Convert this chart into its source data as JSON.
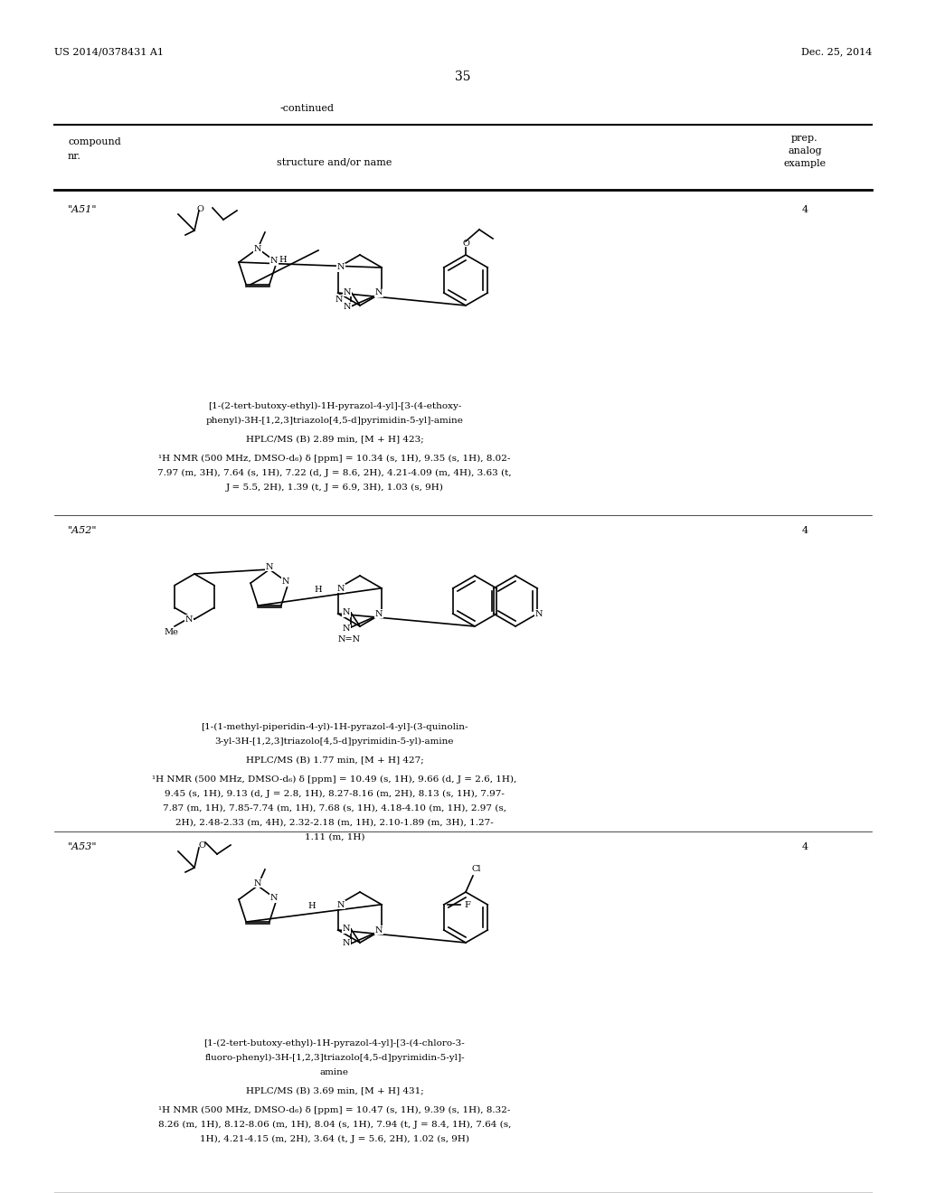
{
  "bg_color": "#ffffff",
  "page_header_left": "US 2014/0378431 A1",
  "page_header_right": "Dec. 25, 2014",
  "page_number": "35",
  "continued_label": "-continued",
  "table_header": {
    "col1_line1": "compound",
    "col1_line2": "nr.",
    "col2": "structure and/or name",
    "col3_line1": "prep.",
    "col3_line2": "analog",
    "col3_line3": "example"
  },
  "compounds": [
    {
      "id": "\"A51\"",
      "example": "4",
      "name_lines": [
        "[1-(2-tert-butoxy-ethyl)-1H-pyrazol-4-yl]-[3-(4-ethoxy-",
        "phenyl)-3H-[1,2,3]triazolo[4,5-d]pyrimidin-5-yl]-amine"
      ],
      "hplc": "HPLC/MS (B) 2.89 min, [M + H] 423;",
      "nmr_lines": [
        "¹H NMR (500 MHz, DMSO-d₆) δ [ppm] = 10.34 (s, 1H), 9.35 (s, 1H), 8.02-",
        "7.97 (m, 3H), 7.64 (s, 1H), 7.22 (d, J = 8.6, 2H), 4.21-4.09 (m, 4H), 3.63 (t,",
        "J = 5.5, 2H), 1.39 (t, J = 6.9, 3H), 1.03 (s, 9H)"
      ]
    },
    {
      "id": "\"A52\"",
      "example": "4",
      "name_lines": [
        "[1-(1-methyl-piperidin-4-yl)-1H-pyrazol-4-yl]-(3-quinolin-",
        "3-yl-3H-[1,2,3]triazolo[4,5-d]pyrimidin-5-yl)-amine"
      ],
      "hplc": "HPLC/MS (B) 1.77 min, [M + H] 427;",
      "nmr_lines": [
        "¹H NMR (500 MHz, DMSO-d₆) δ [ppm] = 10.49 (s, 1H), 9.66 (d, J = 2.6, 1H),",
        "9.45 (s, 1H), 9.13 (d, J = 2.8, 1H), 8.27-8.16 (m, 2H), 8.13 (s, 1H), 7.97-",
        "7.87 (m, 1H), 7.85-7.74 (m, 1H), 7.68 (s, 1H), 4.18-4.10 (m, 1H), 2.97 (s,",
        "2H), 2.48-2.33 (m, 4H), 2.32-2.18 (m, 1H), 2.10-1.89 (m, 3H), 1.27-",
        "1.11 (m, 1H)"
      ]
    },
    {
      "id": "\"A53\"",
      "example": "4",
      "name_lines": [
        "[1-(2-tert-butoxy-ethyl)-1H-pyrazol-4-yl]-[3-(4-chloro-3-",
        "fluoro-phenyl)-3H-[1,2,3]triazolo[4,5-d]pyrimidin-5-yl]-",
        "amine"
      ],
      "hplc": "HPLC/MS (B) 3.69 min, [M + H] 431;",
      "nmr_lines": [
        "¹H NMR (500 MHz, DMSO-d₆) δ [ppm] = 10.47 (s, 1H), 9.39 (s, 1H), 8.32-",
        "8.26 (m, 1H), 8.12-8.06 (m, 1H), 8.04 (s, 1H), 7.94 (t, J = 8.4, 1H), 7.64 (s,",
        "1H), 4.21-4.15 (m, 2H), 3.64 (t, J = 5.6, 2H), 1.02 (s, 9H)"
      ]
    }
  ]
}
